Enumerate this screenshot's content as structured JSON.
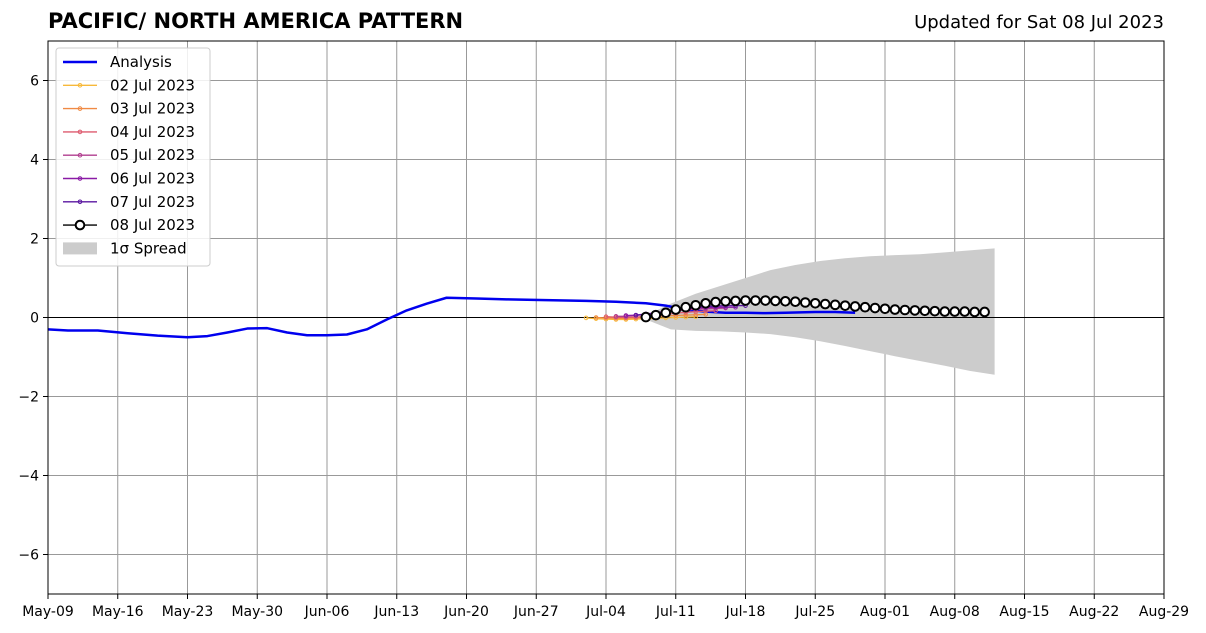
{
  "header": {
    "title": "PACIFIC/ NORTH AMERICA PATTERN",
    "updated": "Updated for Sat 08 Jul 2023"
  },
  "chart_data": {
    "type": "line",
    "title": "PACIFIC/ NORTH AMERICA PATTERN",
    "subtitle": "Updated for Sat 08 Jul 2023",
    "xlabel": "",
    "ylabel": "",
    "x_axis": {
      "start": "2023-05-09",
      "end": "2023-08-29",
      "tick_labels": [
        "May-09",
        "May-16",
        "May-23",
        "May-30",
        "Jun-06",
        "Jun-13",
        "Jun-20",
        "Jun-27",
        "Jul-04",
        "Jul-11",
        "Jul-18",
        "Jul-25",
        "Aug-01",
        "Aug-08",
        "Aug-15",
        "Aug-22",
        "Aug-29"
      ]
    },
    "ylim": [
      -7,
      7
    ],
    "y_ticks": [
      -6,
      -4,
      -2,
      0,
      2,
      4,
      6
    ],
    "y_tick_labels": [
      "−6",
      "−4",
      "−2",
      "0",
      "2",
      "4",
      "6"
    ],
    "grid": true,
    "legend_position": "top-left",
    "series": [
      {
        "name": "Analysis",
        "color": "#0000ee",
        "style": "line",
        "points": [
          [
            "2023-05-09",
            -0.3
          ],
          [
            "2023-05-11",
            -0.33
          ],
          [
            "2023-05-14",
            -0.33
          ],
          [
            "2023-05-17",
            -0.4
          ],
          [
            "2023-05-20",
            -0.46
          ],
          [
            "2023-05-23",
            -0.5
          ],
          [
            "2023-05-25",
            -0.47
          ],
          [
            "2023-05-27",
            -0.38
          ],
          [
            "2023-05-29",
            -0.28
          ],
          [
            "2023-05-31",
            -0.27
          ],
          [
            "2023-06-02",
            -0.38
          ],
          [
            "2023-06-04",
            -0.45
          ],
          [
            "2023-06-06",
            -0.45
          ],
          [
            "2023-06-08",
            -0.43
          ],
          [
            "2023-06-10",
            -0.3
          ],
          [
            "2023-06-12",
            -0.05
          ],
          [
            "2023-06-14",
            0.18
          ],
          [
            "2023-06-16",
            0.35
          ],
          [
            "2023-06-18",
            0.5
          ],
          [
            "2023-06-21",
            0.48
          ],
          [
            "2023-06-24",
            0.46
          ],
          [
            "2023-06-28",
            0.44
          ],
          [
            "2023-07-02",
            0.42
          ],
          [
            "2023-07-05",
            0.4
          ],
          [
            "2023-07-08",
            0.36
          ],
          [
            "2023-07-10",
            0.3
          ],
          [
            "2023-07-12",
            0.2
          ],
          [
            "2023-07-14",
            0.15
          ],
          [
            "2023-07-16",
            0.12
          ],
          [
            "2023-07-18",
            0.12
          ],
          [
            "2023-07-20",
            0.11
          ],
          [
            "2023-07-22",
            0.12
          ],
          [
            "2023-07-25",
            0.14
          ],
          [
            "2023-07-27",
            0.14
          ],
          [
            "2023-07-29",
            0.12
          ]
        ]
      },
      {
        "name": "02 Jul 2023",
        "color": "#f7b93a",
        "style": "line-small-dots",
        "start": "2023-07-02",
        "values": [
          -0.01,
          -0.03,
          -0.04,
          -0.05,
          -0.05,
          -0.04,
          -0.03,
          -0.02,
          -0.01,
          0.0,
          0.01,
          0.02
        ]
      },
      {
        "name": "03 Jul 2023",
        "color": "#f08a44",
        "style": "line-small-dots",
        "start": "2023-07-03",
        "values": [
          0.0,
          -0.01,
          -0.02,
          -0.02,
          -0.01,
          0.0,
          0.02,
          0.04,
          0.05,
          0.06,
          0.07,
          0.08
        ]
      },
      {
        "name": "04 Jul 2023",
        "color": "#dd5a6e",
        "style": "line-small-dots",
        "start": "2023-07-04",
        "values": [
          0.02,
          0.01,
          0.0,
          0.01,
          0.03,
          0.05,
          0.08,
          0.11,
          0.13,
          0.15,
          0.16,
          0.17
        ]
      },
      {
        "name": "05 Jul 2023",
        "color": "#b13e8f",
        "style": "line-small-dots",
        "start": "2023-07-05",
        "values": [
          0.03,
          0.03,
          0.05,
          0.08,
          0.11,
          0.14,
          0.17,
          0.19,
          0.21,
          0.22,
          0.23,
          0.24
        ]
      },
      {
        "name": "06 Jul 2023",
        "color": "#8a1aa6",
        "style": "line-small-dots",
        "start": "2023-07-06",
        "values": [
          0.05,
          0.06,
          0.09,
          0.12,
          0.16,
          0.19,
          0.22,
          0.24,
          0.25,
          0.26,
          0.26,
          0.26
        ]
      },
      {
        "name": "07 Jul 2023",
        "color": "#5a16a0",
        "style": "line-small-dots",
        "start": "2023-07-07",
        "values": [
          0.06,
          0.08,
          0.11,
          0.15,
          0.19,
          0.23,
          0.26,
          0.28,
          0.29,
          0.3,
          0.3,
          0.3
        ]
      },
      {
        "name": "08 Jul 2023",
        "color": "#000000",
        "style": "line-open-circles",
        "start": "2023-07-08",
        "values": [
          0.01,
          0.06,
          0.12,
          0.2,
          0.26,
          0.31,
          0.36,
          0.39,
          0.41,
          0.42,
          0.43,
          0.43,
          0.43,
          0.42,
          0.41,
          0.4,
          0.38,
          0.36,
          0.34,
          0.32,
          0.3,
          0.28,
          0.26,
          0.24,
          0.22,
          0.2,
          0.19,
          0.18,
          0.17,
          0.16,
          0.15,
          0.15,
          0.15,
          0.14,
          0.14
        ]
      }
    ],
    "spread": {
      "name": "1σ Spread",
      "color": "#cccccc",
      "start": "2023-07-08",
      "upper": [
        0.05,
        0.35,
        0.6,
        0.8,
        1.0,
        1.2,
        1.33,
        1.43,
        1.5,
        1.55,
        1.58,
        1.6,
        1.65,
        1.7,
        1.75
      ],
      "lower": [
        -0.05,
        -0.3,
        -0.34,
        -0.35,
        -0.38,
        -0.42,
        -0.5,
        -0.6,
        -0.72,
        -0.85,
        -0.98,
        -1.1,
        -1.22,
        -1.35,
        -1.45
      ]
    }
  }
}
